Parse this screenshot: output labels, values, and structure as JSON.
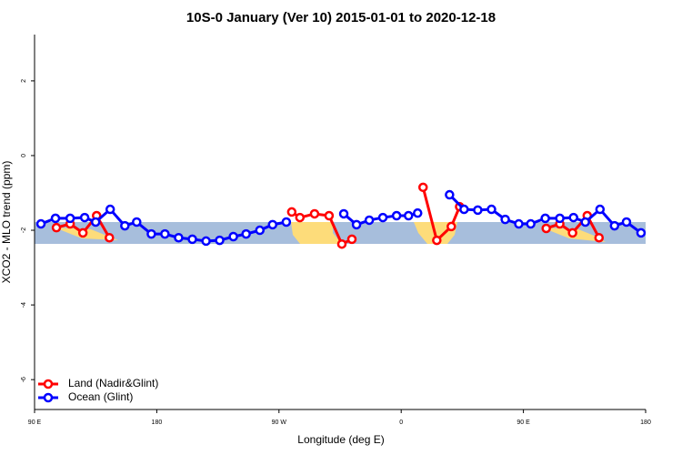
{
  "chart_data": {
    "type": "line",
    "title": "10S-0 January (Ver 10)   2015-01-01 to 2020-12-18",
    "xlabel": "Longitude (deg E)",
    "ylabel": "XCO2 - MLO trend (ppm)",
    "xlim": [
      90,
      540
    ],
    "ylim": [
      -6.8,
      3.24
    ],
    "xticks": [
      {
        "value": 90,
        "label": "90 E"
      },
      {
        "value": 180,
        "label": "180"
      },
      {
        "value": 270,
        "label": "90 W"
      },
      {
        "value": 360,
        "label": "0"
      },
      {
        "value": 450,
        "label": "90 E"
      },
      {
        "value": 540,
        "label": "180"
      }
    ],
    "yticks": [
      -6,
      -4,
      -2,
      0,
      2
    ],
    "legend": "bottom-left",
    "series": [
      {
        "name": "Land (Nadir&Glint)",
        "color": "#ff0000",
        "x": [
          106.1,
          116.2,
          125.6,
          135.7,
          145.1,
          null,
          279.4,
          285.4,
          296.2,
          306.9,
          316.3,
          323.7,
          null,
          376.1,
          386.2,
          396.9,
          403.0,
          null,
          466.8,
          476.8,
          486.2,
          497.0,
          505.7
        ],
        "values": [
          -1.93,
          -1.83,
          -2.07,
          -1.61,
          -2.2,
          null,
          -1.51,
          -1.66,
          -1.56,
          -1.61,
          -2.37,
          -2.24,
          null,
          -0.85,
          -2.27,
          -1.9,
          -1.37,
          null,
          -1.95,
          -1.83,
          -2.07,
          -1.61,
          -2.2
        ]
      },
      {
        "name": "Ocean (Glint)",
        "color": "#0000ff",
        "x": [
          94.7,
          105.4,
          116.2,
          126.9,
          135.0,
          145.7,
          156.5,
          165.2,
          176.0,
          186.0,
          196.1,
          206.2,
          216.3,
          226.3,
          236.4,
          245.8,
          255.9,
          265.3,
          275.4,
          null,
          317.7,
          327.1,
          336.5,
          346.5,
          356.6,
          365.4,
          372.1,
          null,
          395.6,
          406.3,
          416.4,
          426.5,
          436.6,
          446.6,
          455.4,
          466.1,
          476.8,
          486.9,
          495.6,
          506.4,
          517.1,
          525.9,
          536.6
        ],
        "values": [
          -1.83,
          -1.68,
          -1.68,
          -1.66,
          -1.78,
          -1.44,
          -1.88,
          -1.78,
          -2.1,
          -2.1,
          -2.2,
          -2.24,
          -2.29,
          -2.27,
          -2.17,
          -2.1,
          -2.0,
          -1.85,
          -1.78,
          null,
          -1.56,
          -1.85,
          -1.73,
          -1.66,
          -1.61,
          -1.61,
          -1.54,
          null,
          -1.05,
          -1.44,
          -1.46,
          -1.44,
          -1.71,
          -1.83,
          -1.83,
          -1.68,
          -1.68,
          -1.66,
          -1.78,
          -1.44,
          -1.88,
          -1.78,
          -2.07
        ]
      }
    ]
  }
}
